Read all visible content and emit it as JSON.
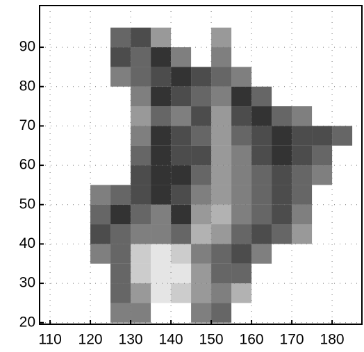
{
  "chart_data": {
    "type": "heatmap",
    "x": [
      110,
      115,
      120,
      125,
      130,
      135,
      140,
      145,
      150,
      155,
      160,
      165,
      170,
      175,
      180,
      185
    ],
    "y": [
      20,
      25,
      30,
      35,
      40,
      45,
      50,
      55,
      60,
      65,
      70,
      75,
      80,
      85,
      90,
      95
    ],
    "z": [
      [
        null,
        null,
        null,
        0.5,
        0.5,
        null,
        null,
        0.5,
        0.6,
        null,
        null,
        null,
        null,
        null,
        null,
        null
      ],
      [
        null,
        null,
        null,
        0.6,
        0.4,
        0.1,
        0.2,
        0.4,
        0.5,
        0.3,
        null,
        null,
        null,
        null,
        null,
        null
      ],
      [
        null,
        null,
        null,
        0.6,
        0.2,
        0.1,
        0.1,
        0.4,
        0.6,
        0.6,
        null,
        null,
        null,
        null,
        null,
        null
      ],
      [
        null,
        null,
        0.5,
        0.6,
        0.2,
        0.1,
        0.2,
        0.5,
        0.6,
        0.7,
        0.5,
        null,
        null,
        null,
        null,
        null
      ],
      [
        null,
        null,
        0.7,
        0.6,
        0.5,
        0.5,
        0.6,
        0.3,
        0.4,
        0.6,
        0.7,
        0.6,
        0.4,
        null,
        null,
        null
      ],
      [
        null,
        null,
        0.6,
        0.8,
        0.6,
        0.5,
        0.8,
        0.4,
        0.3,
        0.5,
        0.6,
        0.7,
        0.5,
        null,
        null,
        null
      ],
      [
        null,
        null,
        0.5,
        0.6,
        0.7,
        0.8,
        0.7,
        0.5,
        0.4,
        0.5,
        0.6,
        0.7,
        0.6,
        null,
        null,
        null
      ],
      [
        null,
        null,
        null,
        null,
        0.7,
        0.8,
        0.8,
        0.6,
        0.4,
        0.5,
        0.6,
        0.7,
        0.6,
        0.5,
        null,
        null
      ],
      [
        null,
        null,
        null,
        null,
        0.6,
        0.8,
        0.7,
        0.7,
        0.4,
        0.5,
        0.7,
        0.8,
        0.7,
        0.6,
        null,
        null
      ],
      [
        null,
        null,
        null,
        null,
        0.5,
        0.8,
        0.7,
        0.6,
        0.4,
        0.6,
        0.7,
        0.8,
        0.7,
        0.7,
        0.6,
        null
      ],
      [
        null,
        null,
        null,
        null,
        0.4,
        0.6,
        0.5,
        0.7,
        0.4,
        0.7,
        0.8,
        0.6,
        0.5,
        null,
        null,
        null
      ],
      [
        null,
        null,
        null,
        null,
        0.5,
        0.8,
        0.7,
        0.6,
        0.5,
        0.8,
        0.6,
        null,
        null,
        null,
        null,
        null
      ],
      [
        null,
        null,
        null,
        0.5,
        0.6,
        0.7,
        0.8,
        0.7,
        0.6,
        0.5,
        null,
        null,
        null,
        null,
        null,
        null
      ],
      [
        null,
        null,
        null,
        0.7,
        0.6,
        0.8,
        0.5,
        null,
        0.5,
        null,
        null,
        null,
        null,
        null,
        null,
        null
      ],
      [
        null,
        null,
        null,
        0.6,
        0.7,
        0.4,
        null,
        null,
        0.4,
        null,
        null,
        null,
        null,
        null,
        null,
        null
      ],
      [
        null,
        null,
        null,
        null,
        null,
        null,
        null,
        null,
        null,
        null,
        null,
        null,
        null,
        null,
        null,
        null
      ]
    ],
    "color": "#000000",
    "xlim": [
      107.4,
      187.4
    ],
    "xticks": [
      110,
      120,
      130,
      140,
      150,
      160,
      170,
      180
    ],
    "ylim": [
      19.6,
      100.6
    ],
    "yticks": [
      20,
      30,
      40,
      50,
      60,
      70,
      80,
      90
    ],
    "grid": true
  }
}
